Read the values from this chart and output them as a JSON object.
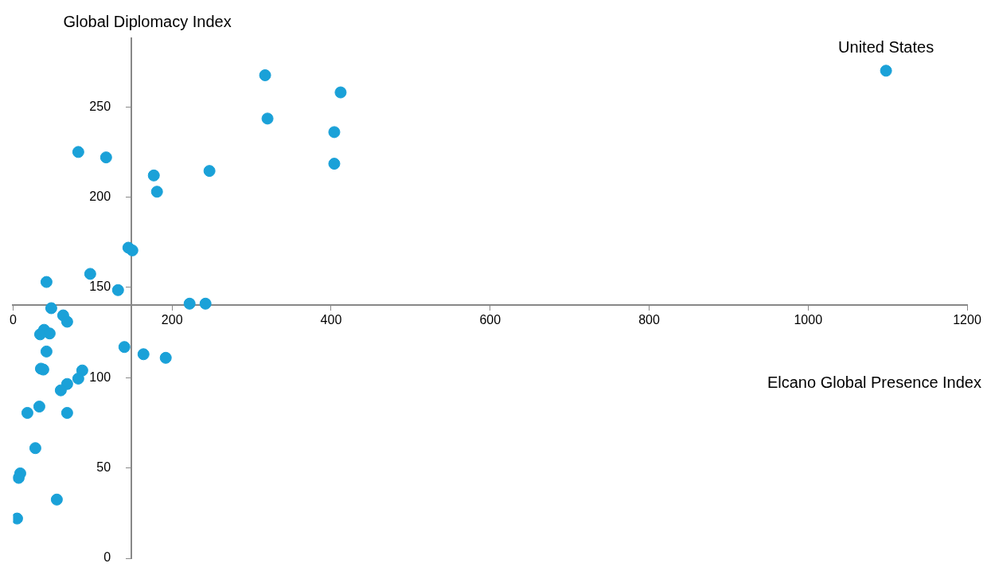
{
  "chart_data": {
    "type": "scatter",
    "xlabel": "Elcano Global Presence Index",
    "ylabel": "Global Diplomacy Index",
    "x": [
      1098,
      317,
      412,
      320,
      404,
      404,
      82,
      117,
      177,
      181,
      247,
      145,
      150,
      97,
      132,
      42,
      222,
      242,
      48,
      63,
      68,
      39,
      46,
      34,
      42,
      140,
      164,
      192,
      35,
      38,
      87,
      82,
      68,
      60,
      33,
      18,
      68,
      28,
      9,
      7,
      55,
      5
    ],
    "values": [
      270,
      267.5,
      258,
      243.5,
      236,
      218.5,
      225,
      222,
      212,
      203,
      214.5,
      172,
      170.5,
      157.5,
      148.5,
      153,
      141,
      141,
      138.5,
      134.5,
      131,
      126.5,
      124.5,
      124,
      114.5,
      117,
      113,
      111,
      105,
      104.5,
      104,
      99.5,
      96.5,
      93,
      84,
      80.5,
      80.5,
      61,
      47,
      44.5,
      32.5,
      22
    ],
    "color": "#1aa1d8",
    "marker": "circle",
    "xlim": [
      0,
      1200
    ],
    "xticks": [
      0,
      200,
      400,
      600,
      800,
      {
        "value": 1000,
        "label": "1000"
      },
      {
        "value": 1200,
        "label": "1200"
      }
    ],
    "ylim": [
      0,
      288
    ],
    "yticks": [
      0,
      50,
      100,
      150,
      200,
      250
    ],
    "annotations": [
      {
        "text": "United States",
        "x": 1098,
        "y": 270
      }
    ],
    "grid": false,
    "legend": false
  }
}
